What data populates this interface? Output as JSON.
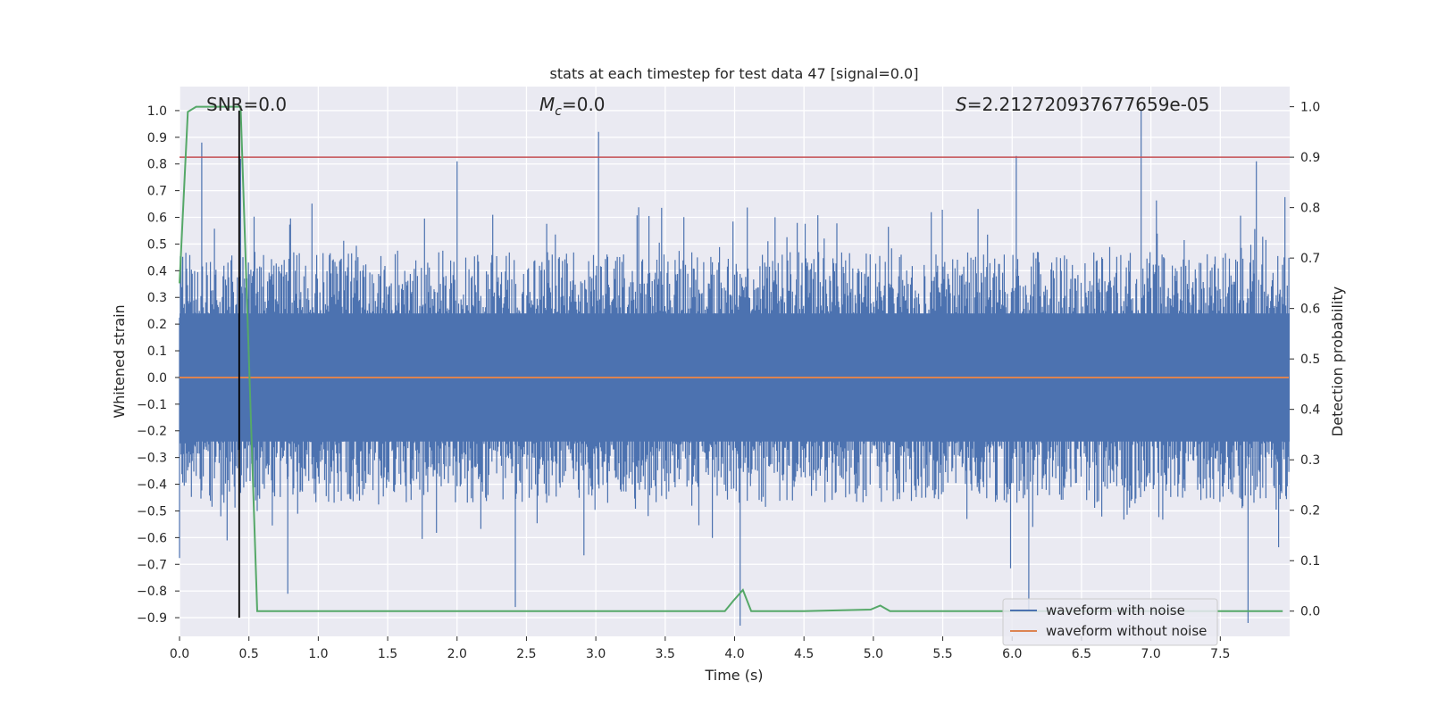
{
  "chart_data": {
    "type": "line",
    "title": "stats at each timestep for test data 47 [signal=0.0]",
    "xlabel": "Time (s)",
    "ylabel": "Whitened strain",
    "y2label": "Detection probability",
    "xlim": [
      0.0,
      8.0
    ],
    "ylim": [
      -0.97,
      1.09
    ],
    "y2lim": [
      -0.05,
      1.04
    ],
    "grid": true,
    "xticks": [
      0.0,
      0.5,
      1.0,
      1.5,
      2.0,
      2.5,
      3.0,
      3.5,
      4.0,
      4.5,
      5.0,
      5.5,
      6.0,
      6.5,
      7.0,
      7.5
    ],
    "xtick_labels": [
      "0.0",
      "0.5",
      "1.0",
      "1.5",
      "2.0",
      "2.5",
      "3.0",
      "3.5",
      "4.0",
      "4.5",
      "5.0",
      "5.5",
      "6.0",
      "6.5",
      "7.0",
      "7.5"
    ],
    "yticks": [
      1.0,
      0.9,
      0.8,
      0.7,
      0.6,
      0.5,
      0.4,
      0.3,
      0.2,
      0.1,
      0.0,
      -0.1,
      -0.2,
      -0.3,
      -0.4,
      -0.5,
      -0.6,
      -0.7,
      -0.8,
      -0.9
    ],
    "ytick_labels": [
      "1.0",
      "0.9",
      "0.8",
      "0.7",
      "0.6",
      "0.5",
      "0.4",
      "0.3",
      "0.2",
      "0.1",
      "0.0",
      "−0.1",
      "−0.2",
      "−0.3",
      "−0.4",
      "−0.5",
      "−0.6",
      "−0.7",
      "−0.8",
      "−0.9"
    ],
    "y2ticks": [
      1.0,
      0.9,
      0.8,
      0.7,
      0.6,
      0.5,
      0.4,
      0.3,
      0.2,
      0.1,
      0.0
    ],
    "y2tick_labels": [
      "1.0",
      "0.9",
      "0.8",
      "0.7",
      "0.6",
      "0.5",
      "0.4",
      "0.3",
      "0.2",
      "0.1",
      "0.0"
    ],
    "annotations": {
      "snr": "SNR=0.0",
      "mc_symbol": "M",
      "mc_sub": "c",
      "mc_value": "=0.0",
      "s_symbol": "S",
      "s_value": "=2.212720937677659e-05"
    },
    "series": [
      {
        "name": "waveform with noise",
        "color": "#4c72b0",
        "axis": "left",
        "kind": "noise",
        "typical_range": [
          -0.47,
          0.47
        ],
        "spikes": [
          {
            "x": 0.16,
            "y": 0.88
          },
          {
            "x": 0.44,
            "y": 0.82
          },
          {
            "x": 2.0,
            "y": 0.81
          },
          {
            "x": 3.02,
            "y": 0.92
          },
          {
            "x": 6.03,
            "y": 0.83
          },
          {
            "x": 6.93,
            "y": 1.0
          },
          {
            "x": 7.76,
            "y": 0.81
          },
          {
            "x": 4.04,
            "y": -0.93
          },
          {
            "x": 6.12,
            "y": -0.87
          },
          {
            "x": 7.7,
            "y": -0.92
          },
          {
            "x": 2.42,
            "y": -0.86
          },
          {
            "x": 0.78,
            "y": -0.81
          }
        ]
      },
      {
        "name": "waveform without noise",
        "color": "#dd8452",
        "axis": "left",
        "x": [
          0.0,
          8.0
        ],
        "y": [
          0.0,
          0.0
        ]
      },
      {
        "name": "detection probability",
        "color": "#55a868",
        "axis": "right",
        "x": [
          0.0,
          0.06,
          0.12,
          0.2,
          0.3,
          0.44,
          0.5,
          0.56,
          0.7,
          1.0,
          2.0,
          3.0,
          3.93,
          3.99,
          4.06,
          4.12,
          4.5,
          4.98,
          5.05,
          5.12,
          6.0,
          7.0,
          7.95
        ],
        "y": [
          0.65,
          0.99,
          1.0,
          1.0,
          1.0,
          1.0,
          0.5,
          0.0,
          0.0,
          0.0,
          0.0,
          0.0,
          0.0,
          0.02,
          0.042,
          0.0,
          0.0,
          0.003,
          0.011,
          0.0,
          0.0,
          0.0,
          0.0
        ]
      }
    ],
    "threshold_line": {
      "y2": 0.9,
      "color": "#c44e52"
    },
    "marker_line": {
      "x": 0.43,
      "y_from": -0.9,
      "y_to": 1.0,
      "color": "#000000"
    },
    "legend": {
      "placement": "lower-right",
      "entries": [
        {
          "label": "waveform with noise",
          "color": "#4c72b0"
        },
        {
          "label": "waveform without noise",
          "color": "#dd8452"
        }
      ]
    }
  }
}
